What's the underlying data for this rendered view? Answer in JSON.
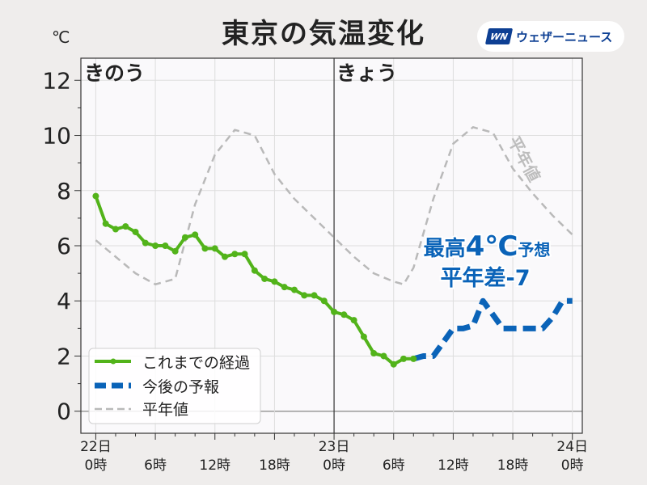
{
  "title": "東京の気温変化",
  "logo": {
    "mark": "WN",
    "text": "ウェザーニュース"
  },
  "unit": "℃",
  "day_labels": {
    "yesterday": "きのう",
    "today": "きょう"
  },
  "summary": {
    "line1_prefix": "最高",
    "line1_value": "4℃",
    "line1_suffix": "予想",
    "line2": "平年差-7"
  },
  "normal_curve_label": "平年値",
  "colors": {
    "observed": "#52b31a",
    "forecast": "#0a63b8",
    "normal": "#b9b9b9",
    "summary": "#0a63b8",
    "plot_bg": "#faf9fb"
  },
  "chart_data": {
    "type": "line",
    "title": "東京の気温変化",
    "ylabel": "℃",
    "ylim": [
      -0.8,
      12.8
    ],
    "xlim": [
      -1.5,
      49
    ],
    "grid": true,
    "legend_position": "bottom-left",
    "y_ticks": [
      0,
      2,
      4,
      6,
      8,
      10,
      12
    ],
    "x_ticks": [
      {
        "x": 0,
        "line1": "22日",
        "line2": "0時"
      },
      {
        "x": 6,
        "line1": "",
        "line2": "6時"
      },
      {
        "x": 12,
        "line1": "",
        "line2": "12時"
      },
      {
        "x": 18,
        "line1": "",
        "line2": "18時"
      },
      {
        "x": 24,
        "line1": "23日",
        "line2": "0時"
      },
      {
        "x": 30,
        "line1": "",
        "line2": "6時"
      },
      {
        "x": 36,
        "line1": "",
        "line2": "12時"
      },
      {
        "x": 42,
        "line1": "",
        "line2": "18時"
      },
      {
        "x": 48,
        "line1": "24日",
        "line2": "0時"
      }
    ],
    "series": [
      {
        "name": "これまでの経過",
        "style": "solid-markers",
        "x": [
          0,
          1,
          2,
          3,
          4,
          5,
          6,
          7,
          8,
          9,
          10,
          11,
          12,
          13,
          14,
          15,
          16,
          17,
          18,
          19,
          20,
          21,
          22,
          23,
          24,
          25,
          26,
          27,
          28,
          29,
          30,
          31,
          32
        ],
        "y": [
          7.8,
          6.8,
          6.6,
          6.7,
          6.5,
          6.1,
          6.0,
          6.0,
          5.8,
          6.3,
          6.4,
          5.9,
          5.9,
          5.6,
          5.7,
          5.7,
          5.1,
          4.8,
          4.7,
          4.5,
          4.4,
          4.2,
          4.2,
          4.0,
          3.6,
          3.5,
          3.3,
          2.7,
          2.1,
          2.0,
          1.7,
          1.9,
          1.9
        ]
      },
      {
        "name": "今後の予報",
        "style": "dashed-thick",
        "x": [
          32,
          33,
          34,
          35,
          36,
          37,
          38,
          39,
          40,
          41,
          42,
          43,
          44,
          45,
          46,
          47,
          48
        ],
        "y": [
          1.9,
          2.0,
          2.0,
          2.5,
          3.0,
          3.0,
          3.1,
          4.0,
          3.5,
          3.0,
          3.0,
          3.0,
          3.0,
          3.0,
          3.4,
          4.0,
          4.0
        ]
      },
      {
        "name": "平年値",
        "style": "dashed-thin",
        "x": [
          0,
          2,
          4,
          6,
          8,
          10,
          12,
          14,
          16,
          18,
          20,
          22,
          24,
          26,
          28,
          30,
          31,
          32,
          34,
          36,
          38,
          40,
          42,
          44,
          46,
          48
        ],
        "y": [
          6.2,
          5.6,
          5.0,
          4.6,
          4.8,
          7.5,
          9.3,
          10.2,
          10.0,
          8.6,
          7.7,
          7.0,
          6.3,
          5.6,
          5.0,
          4.7,
          4.6,
          5.2,
          7.7,
          9.7,
          10.3,
          10.1,
          8.8,
          7.9,
          7.1,
          6.4
        ]
      }
    ]
  }
}
